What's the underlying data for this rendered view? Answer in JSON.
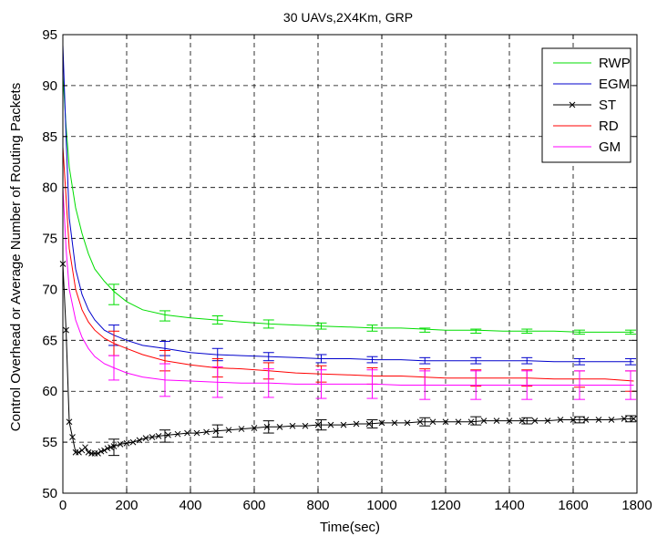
{
  "chart_data": {
    "type": "line",
    "title": "30 UAVs,2X4Km, GRP",
    "xlabel": "Time(sec)",
    "ylabel": "Control Overhead or Average Number of Routing Packets",
    "xlim": [
      0,
      1800
    ],
    "ylim": [
      50,
      95
    ],
    "xticks": [
      0,
      200,
      400,
      600,
      800,
      1000,
      1200,
      1400,
      1600,
      1800
    ],
    "yticks": [
      50,
      55,
      60,
      65,
      70,
      75,
      80,
      85,
      90,
      95
    ],
    "grid": true,
    "legend_position": "top-right",
    "series": [
      {
        "name": "RWP",
        "color": "#00dd00",
        "marker": "none",
        "x": [
          0,
          10,
          20,
          40,
          60,
          80,
          100,
          130,
          160,
          200,
          250,
          320,
          400,
          480,
          560,
          650,
          730,
          810,
          900,
          980,
          1060,
          1130,
          1200,
          1300,
          1380,
          1460,
          1540,
          1620,
          1700,
          1790
        ],
        "y": [
          91,
          86,
          82,
          78,
          75.5,
          73.5,
          72,
          70.8,
          69.8,
          68.8,
          68,
          67.5,
          67.2,
          67.0,
          66.8,
          66.6,
          66.5,
          66.4,
          66.3,
          66.2,
          66.2,
          66.1,
          66.0,
          66.0,
          65.9,
          65.9,
          65.9,
          65.8,
          65.8,
          65.8
        ],
        "error_x": [
          160,
          320,
          485,
          645,
          810,
          970,
          1135,
          1295,
          1455,
          1620,
          1780
        ],
        "error_y": [
          69.5,
          67.4,
          67.0,
          66.6,
          66.4,
          66.2,
          66.0,
          65.9,
          65.9,
          65.8,
          65.8
        ],
        "error_half": [
          1.0,
          0.5,
          0.4,
          0.4,
          0.3,
          0.3,
          0.2,
          0.2,
          0.2,
          0.2,
          0.2
        ]
      },
      {
        "name": "EGM",
        "color": "#0000cc",
        "marker": "none",
        "x": [
          0,
          10,
          20,
          40,
          60,
          80,
          100,
          130,
          160,
          200,
          250,
          320,
          400,
          480,
          560,
          650,
          730,
          810,
          900,
          980,
          1060,
          1130,
          1200,
          1300,
          1380,
          1460,
          1540,
          1620,
          1700,
          1790
        ],
        "y": [
          94,
          85,
          77,
          72,
          69.5,
          68,
          67,
          66,
          65.5,
          65,
          64.5,
          64.2,
          63.8,
          63.6,
          63.5,
          63.4,
          63.3,
          63.2,
          63.2,
          63.1,
          63.1,
          63.0,
          63.0,
          63.0,
          63.0,
          63.0,
          62.9,
          62.9,
          62.9,
          62.9
        ],
        "error_x": [
          160,
          320,
          485,
          645,
          810,
          970,
          1135,
          1295,
          1455,
          1620,
          1780
        ],
        "error_y": [
          65.5,
          64.2,
          63.6,
          63.4,
          63.2,
          63.1,
          63.0,
          63.0,
          63.0,
          62.9,
          62.9
        ],
        "error_half": [
          1.0,
          0.7,
          0.6,
          0.4,
          0.4,
          0.3,
          0.3,
          0.3,
          0.3,
          0.3,
          0.3
        ]
      },
      {
        "name": "ST",
        "color": "#000000",
        "marker": "x",
        "x": [
          0,
          10,
          20,
          30,
          40,
          50,
          60,
          70,
          80,
          90,
          100,
          110,
          120,
          130,
          140,
          150,
          160,
          180,
          200,
          220,
          240,
          260,
          280,
          300,
          330,
          360,
          390,
          420,
          450,
          480,
          520,
          560,
          600,
          640,
          680,
          720,
          760,
          800,
          840,
          880,
          920,
          960,
          1000,
          1040,
          1080,
          1120,
          1160,
          1200,
          1240,
          1280,
          1320,
          1360,
          1400,
          1440,
          1480,
          1520,
          1560,
          1600,
          1640,
          1680,
          1720,
          1760,
          1790
        ],
        "y": [
          72.5,
          66,
          57,
          55.5,
          54,
          54,
          54.2,
          54.5,
          54,
          53.9,
          53.9,
          53.9,
          54.1,
          54.2,
          54.4,
          54.5,
          54.6,
          54.8,
          54.9,
          55.0,
          55.2,
          55.4,
          55.5,
          55.6,
          55.7,
          55.8,
          55.9,
          55.9,
          56.0,
          56.1,
          56.2,
          56.3,
          56.4,
          56.5,
          56.5,
          56.6,
          56.6,
          56.7,
          56.7,
          56.7,
          56.8,
          56.8,
          56.9,
          56.9,
          56.9,
          57.0,
          57.0,
          57.0,
          57.0,
          57.0,
          57.1,
          57.1,
          57.1,
          57.1,
          57.1,
          57.1,
          57.2,
          57.2,
          57.2,
          57.2,
          57.2,
          57.3,
          57.3
        ],
        "error_x": [
          160,
          320,
          485,
          645,
          810,
          970,
          1135,
          1295,
          1455,
          1620,
          1780
        ],
        "error_y": [
          54.5,
          55.6,
          56.1,
          56.5,
          56.7,
          56.8,
          57.0,
          57.1,
          57.1,
          57.2,
          57.3
        ],
        "error_half": [
          0.8,
          0.6,
          0.6,
          0.6,
          0.5,
          0.4,
          0.4,
          0.4,
          0.3,
          0.3,
          0.3
        ]
      },
      {
        "name": "RD",
        "color": "#ff0000",
        "marker": "none",
        "x": [
          0,
          10,
          20,
          40,
          60,
          80,
          100,
          130,
          160,
          200,
          250,
          320,
          400,
          480,
          560,
          650,
          730,
          810,
          900,
          980,
          1060,
          1130,
          1200,
          1300,
          1380,
          1460,
          1540,
          1620,
          1700,
          1790
        ],
        "y": [
          84,
          79,
          74,
          70,
          68,
          66.8,
          66,
          65.2,
          64.7,
          64.2,
          63.6,
          63.0,
          62.6,
          62.3,
          62.2,
          62.0,
          61.8,
          61.7,
          61.6,
          61.5,
          61.5,
          61.4,
          61.3,
          61.3,
          61.3,
          61.3,
          61.2,
          61.2,
          61.2,
          61.0
        ],
        "error_x": [
          160,
          320,
          485,
          645,
          810,
          970,
          1135,
          1295,
          1455,
          1620,
          1780
        ],
        "error_y": [
          64.7,
          63.0,
          62.3,
          62.0,
          61.7,
          61.5,
          61.4,
          61.3,
          61.3,
          61.2,
          61.0
        ],
        "error_half": [
          1.2,
          1.0,
          0.9,
          0.8,
          0.8,
          0.8,
          0.8,
          0.8,
          0.8,
          0.8,
          1.0
        ]
      },
      {
        "name": "GM",
        "color": "#ff00ff",
        "marker": "none",
        "x": [
          0,
          10,
          20,
          40,
          60,
          80,
          100,
          130,
          160,
          200,
          250,
          320,
          400,
          480,
          560,
          650,
          730,
          810,
          900,
          980,
          1060,
          1130,
          1200,
          1300,
          1380,
          1460,
          1540,
          1620,
          1700,
          1790
        ],
        "y": [
          80,
          74,
          70,
          67,
          65.3,
          64.2,
          63.4,
          62.7,
          62.3,
          61.8,
          61.4,
          61.1,
          61.0,
          60.9,
          60.8,
          60.8,
          60.7,
          60.7,
          60.7,
          60.7,
          60.6,
          60.6,
          60.6,
          60.6,
          60.6,
          60.6,
          60.6,
          60.6,
          60.6,
          60.6
        ],
        "error_x": [
          160,
          320,
          485,
          645,
          810,
          970,
          1135,
          1295,
          1455,
          1620,
          1780
        ],
        "error_y": [
          62.3,
          61.1,
          60.9,
          60.8,
          60.7,
          60.7,
          60.6,
          60.6,
          60.6,
          60.6,
          60.6
        ],
        "error_half": [
          1.2,
          1.6,
          1.5,
          1.4,
          1.4,
          1.4,
          1.4,
          1.4,
          1.4,
          1.4,
          1.4
        ]
      }
    ]
  }
}
